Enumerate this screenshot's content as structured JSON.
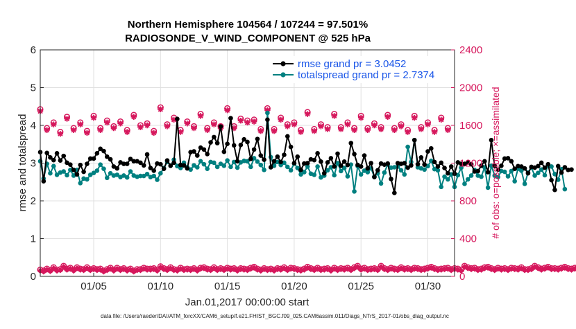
{
  "chart_data": {
    "type": "line",
    "title_line1": "Northern Hemisphere 104564 / 107244 = 97.501%",
    "title_line2": "RADIOSONDE_V_WIND_COMPONENT @ 525 hPa",
    "xlabel": "Jan.01,2017 00:00:00 start",
    "ylabel_left": "rmse and totalspread",
    "ylabel_right": "# of obs: o=possible; ×=assimilated",
    "ylim_left": [
      0,
      6
    ],
    "ylim_right": [
      0,
      2400
    ],
    "xlim_days": [
      1,
      32
    ],
    "yticks_left": [
      "0",
      "1",
      "2",
      "3",
      "4",
      "5",
      "6"
    ],
    "yticks_right": [
      "0",
      "400",
      "800",
      "1200",
      "1600",
      "2000",
      "2400"
    ],
    "xticks": [
      {
        "day": 5,
        "label": "01/05"
      },
      {
        "day": 10,
        "label": "01/10"
      },
      {
        "day": 15,
        "label": "01/15"
      },
      {
        "day": 20,
        "label": "01/20"
      },
      {
        "day": 25,
        "label": "01/25"
      },
      {
        "day": 30,
        "label": "01/30"
      }
    ],
    "grid": true,
    "legend_position": "top-right",
    "colors": {
      "rmse": "#000000",
      "spread": "#008080",
      "obs": "#d6175c",
      "grid": "#e0e0e0",
      "axes": "#262626",
      "legend_text": "#1a56e8"
    },
    "series": [
      {
        "name": "rmse grand pr = 3.0452",
        "key": "rmse",
        "x_start_day": 1,
        "x_step_days": 0.25,
        "values": [
          3.29,
          2.52,
          3.27,
          3.15,
          3.08,
          3.26,
          3.07,
          3.19,
          3.01,
          2.96,
          2.82,
          2.7,
          2.95,
          2.77,
          2.98,
          3.12,
          3.12,
          3.26,
          3.38,
          3.32,
          3.17,
          3.1,
          2.91,
          2.86,
          3.02,
          2.98,
          2.98,
          3.11,
          3.05,
          3.05,
          3.01,
          2.94,
          3.23,
          2.87,
          2.8,
          2.99,
          2.97,
          2.85,
          3.07,
          2.93,
          3.01,
          4.17,
          2.95,
          2.94,
          2.86,
          3.29,
          3.31,
          3.2,
          3.41,
          3.36,
          3.24,
          3.55,
          3.69,
          3.53,
          3.97,
          3.3,
          3.51,
          4.19,
          3.47,
          3.05,
          3.48,
          3.63,
          3.56,
          3.11,
          3.36,
          3.64,
          3.2,
          3.09,
          4.15,
          2.89,
          3.05,
          3.17,
          3.03,
          3.22,
          3.71,
          3.43,
          3.0,
          3.17,
          2.82,
          2.99,
          3.0,
          3.1,
          3.08,
          3.26,
          3.04,
          2.73,
          3.02,
          3.13,
          2.91,
          3.25,
          2.93,
          3.04,
          2.95,
          3.53,
          3.24,
          2.95,
          2.91,
          3.2,
          2.86,
          3.0,
          2.63,
          2.81,
          2.99,
          2.96,
          2.99,
          2.58,
          2.21,
          3.0,
          2.98,
          3.0,
          2.88,
          2.94,
          3.61,
          2.97,
          3.15,
          2.96,
          3.31,
          3.39,
          3.03,
          2.91,
          3.01,
          2.87,
          2.73,
          2.91,
          2.72,
          3.02,
          2.98,
          2.98,
          3.02,
          2.97,
          2.78,
          2.79,
          2.93,
          3.05,
          2.76,
          3.61,
          2.93,
          2.83,
          2.93,
          3.12,
          3.13,
          3.05,
          2.85,
          2.92,
          2.91,
          2.86,
          2.73,
          2.9,
          2.88,
          2.92,
          3.01,
          2.88,
          2.97,
          2.55,
          2.29,
          2.92,
          2.75,
          2.89,
          2.82,
          2.83
        ]
      },
      {
        "name": "totalspread grand pr = 2.7374",
        "key": "spread",
        "x_start_day": 1,
        "x_step_days": 0.25,
        "values": [
          3.05,
          2.59,
          2.98,
          2.73,
          2.92,
          2.69,
          2.75,
          2.78,
          2.68,
          2.82,
          2.67,
          2.82,
          2.47,
          2.59,
          2.57,
          2.69,
          2.74,
          2.8,
          2.96,
          2.85,
          2.61,
          2.73,
          2.67,
          2.69,
          2.63,
          2.67,
          2.62,
          2.78,
          2.67,
          2.64,
          2.66,
          2.66,
          2.71,
          2.63,
          2.66,
          2.56,
          2.73,
          2.87,
          3.03,
          2.93,
          3.09,
          2.92,
          2.87,
          3.01,
          2.89,
          2.83,
          2.94,
          2.89,
          3.05,
          2.97,
          2.85,
          3.03,
          3.01,
          2.9,
          2.98,
          2.93,
          3.07,
          2.9,
          3.03,
          2.88,
          3.02,
          3.06,
          3.05,
          2.9,
          3.13,
          3.04,
          2.95,
          2.82,
          4.33,
          3.16,
          2.93,
          3.03,
          2.95,
          3.01,
          2.9,
          2.81,
          2.99,
          2.87,
          2.7,
          2.76,
          2.91,
          2.72,
          2.69,
          2.91,
          2.62,
          2.67,
          2.81,
          2.89,
          2.68,
          3.0,
          2.79,
          2.87,
          2.65,
          2.96,
          2.25,
          2.92,
          2.7,
          2.8,
          2.76,
          2.86,
          2.64,
          2.73,
          2.46,
          2.75,
          2.97,
          2.88,
          2.89,
          2.91,
          2.81,
          2.7,
          3.43,
          3.03,
          3.61,
          2.89,
          2.86,
          2.83,
          2.92,
          3.06,
          2.84,
          2.81,
          2.37,
          2.64,
          2.57,
          2.7,
          2.37,
          2.68,
          2.88,
          2.45,
          2.57,
          2.67,
          2.82,
          2.67,
          2.64,
          2.89,
          2.35,
          2.93,
          2.67,
          2.63,
          2.79,
          2.77,
          2.65,
          2.79,
          2.52,
          2.85,
          2.8,
          2.45,
          2.75,
          2.88,
          2.67,
          2.74,
          2.83,
          2.68,
          2.95,
          2.91,
          2.71,
          2.56,
          2.84,
          2.31
        ]
      }
    ],
    "obs_possible_00z": [
      1770,
      1630,
      1690,
      1630,
      1700,
      1650,
      1640,
      1710,
      1620,
      1790,
      1680,
      1640,
      1720,
      1630,
      1780,
      1670,
      1660,
      1780,
      1680,
      1630,
      1740,
      1610,
      1720,
      1630,
      1700,
      1620,
      1710,
      1610,
      1700,
      1630,
      1680
    ],
    "obs_possible_12z": [
      1570,
      1530,
      1570,
      1540,
      1570,
      1590,
      1550,
      1600,
      1540,
      1610,
      1550,
      1590,
      1570,
      1590,
      1590,
      1650,
      1560,
      1560,
      1610,
      1550,
      1560,
      1580,
      1580,
      1570,
      1570,
      1580,
      1570,
      1550,
      1580,
      1550,
      1570
    ],
    "obs_assimilated_00z": [
      1750,
      1610,
      1670,
      1610,
      1680,
      1630,
      1620,
      1690,
      1600,
      1770,
      1660,
      1620,
      1700,
      1610,
      1760,
      1650,
      1640,
      1760,
      1660,
      1610,
      1720,
      1590,
      1700,
      1610,
      1680,
      1600,
      1690,
      1590,
      1680,
      1610,
      1660
    ],
    "obs_assimilated_12z": [
      1550,
      1510,
      1550,
      1520,
      1550,
      1570,
      1530,
      1580,
      1520,
      1590,
      1530,
      1570,
      1550,
      1570,
      1570,
      1630,
      1540,
      1540,
      1590,
      1530,
      1540,
      1560,
      1560,
      1550,
      1550,
      1560,
      1550,
      1530,
      1560,
      1530,
      1550
    ],
    "obs_low_possible": [
      70,
      60,
      80,
      65,
      95,
      70,
      75,
      110,
      80,
      90,
      70,
      95,
      80,
      75,
      95,
      75,
      85,
      75,
      80,
      60,
      75,
      90,
      70,
      90,
      75,
      85,
      70,
      80,
      60,
      75,
      75,
      90,
      80,
      80,
      85,
      70,
      105,
      85,
      75,
      95,
      75,
      70,
      90,
      75,
      80,
      75,
      85,
      70,
      90,
      95,
      80,
      75,
      95,
      75,
      85,
      75,
      90,
      80,
      85,
      70,
      85,
      80,
      75,
      90,
      100,
      80,
      70,
      85,
      75,
      80,
      70,
      85,
      80,
      95,
      75,
      90,
      85,
      75,
      70,
      80,
      100,
      85,
      75,
      90,
      75,
      80,
      85,
      70,
      90,
      75,
      85,
      80,
      90,
      75,
      95,
      110,
      80,
      90,
      75,
      80,
      85,
      75,
      110,
      85,
      75,
      90,
      80,
      75,
      95,
      80,
      85,
      75,
      90,
      85,
      75,
      80,
      90,
      100,
      85,
      75,
      80,
      85,
      90,
      75,
      85,
      80,
      70,
      110,
      95,
      85,
      90,
      75,
      80,
      95,
      100,
      85,
      75,
      90,
      80,
      85,
      75,
      90,
      85,
      80,
      95,
      75,
      75,
      85,
      110,
      95,
      80,
      90,
      100,
      85,
      85,
      80,
      90,
      100,
      85,
      80,
      90,
      95,
      85,
      80,
      90
    ],
    "obs_low_assimilated": [
      60,
      50,
      70,
      55,
      85,
      60,
      65,
      100,
      70,
      80,
      60,
      85,
      70,
      65,
      85,
      65,
      75,
      65,
      70,
      50,
      65,
      80,
      60,
      80,
      65,
      75,
      60,
      70,
      50,
      65,
      65,
      80,
      70,
      70,
      75,
      60,
      95,
      75,
      65,
      85,
      65,
      60,
      80,
      65,
      70,
      65,
      75,
      60,
      80,
      85,
      70,
      65,
      85,
      65,
      75,
      65,
      80,
      70,
      75,
      60,
      75,
      70,
      65,
      80,
      90,
      70,
      60,
      75,
      65,
      70,
      60,
      75,
      70,
      85,
      65,
      80,
      75,
      65,
      60,
      70,
      90,
      75,
      65,
      80,
      65,
      70,
      75,
      60,
      80,
      65,
      75,
      70,
      80,
      65,
      85,
      100,
      70,
      80,
      65,
      70,
      75,
      65,
      100,
      75,
      65,
      80,
      70,
      65,
      85,
      70,
      75,
      65,
      80,
      75,
      65,
      70,
      80,
      90,
      75,
      65,
      70,
      75,
      80,
      65,
      75,
      70,
      60,
      100,
      85,
      75,
      80,
      65,
      70,
      85,
      90,
      75,
      65,
      80,
      70,
      75,
      65,
      80,
      75,
      70,
      85,
      65,
      65,
      75,
      100,
      85,
      70,
      80,
      90,
      75,
      75,
      70,
      80,
      90,
      75,
      70,
      80,
      85,
      75,
      70,
      80
    ]
  },
  "footnote": "data file: /Users/raeder/DAI/ATM_forcXX/CAM6_setup/f.e21.FHIST_BGC.f09_025.CAM6assim.011/Diags_NTrS_2017-01/obs_diag_output.nc"
}
